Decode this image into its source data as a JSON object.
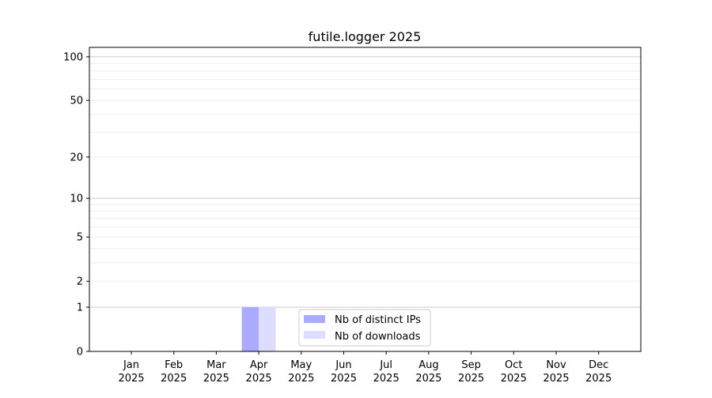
{
  "chart_data": {
    "type": "bar",
    "title": "futile.logger 2025",
    "xlabel": "",
    "ylabel": "",
    "y_scale": "log(1+y)",
    "ylim": [
      0,
      116
    ],
    "y_ticks": [
      0,
      1,
      2,
      5,
      10,
      20,
      50,
      100
    ],
    "grid": "horizontal, major and minor",
    "categories": [
      [
        "Jan",
        "2025"
      ],
      [
        "Feb",
        "2025"
      ],
      [
        "Mar",
        "2025"
      ],
      [
        "Apr",
        "2025"
      ],
      [
        "May",
        "2025"
      ],
      [
        "Jun",
        "2025"
      ],
      [
        "Jul",
        "2025"
      ],
      [
        "Aug",
        "2025"
      ],
      [
        "Sep",
        "2025"
      ],
      [
        "Oct",
        "2025"
      ],
      [
        "Nov",
        "2025"
      ],
      [
        "Dec",
        "2025"
      ]
    ],
    "series": [
      {
        "name": "Nb of distinct IPs",
        "color": "#aaaaff",
        "values": [
          0,
          0,
          0,
          1,
          0,
          0,
          0,
          0,
          0,
          0,
          0,
          0
        ]
      },
      {
        "name": "Nb of downloads",
        "color": "#ddddff",
        "values": [
          0,
          0,
          0,
          1,
          0,
          0,
          0,
          0,
          0,
          0,
          0,
          0
        ]
      }
    ],
    "legend_position": "lower-center"
  }
}
